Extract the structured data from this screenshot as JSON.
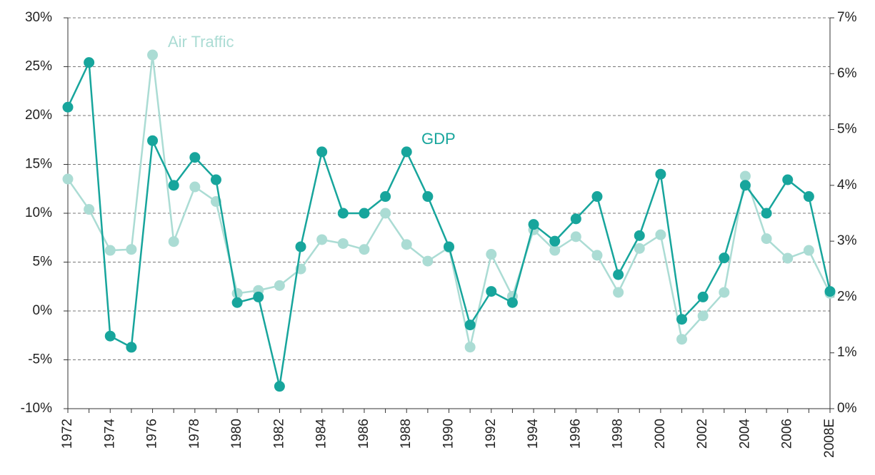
{
  "chart_data": {
    "type": "line",
    "annotations": [
      "Air Traffic",
      "GDP"
    ],
    "categories": [
      "1972",
      null,
      "1974",
      null,
      "1976",
      null,
      "1978",
      null,
      "1980",
      null,
      "1982",
      null,
      "1984",
      null,
      "1986",
      null,
      "1988",
      null,
      "1990",
      null,
      "1992",
      null,
      "1994",
      null,
      "1996",
      null,
      "1998",
      null,
      "2000",
      null,
      "2002",
      null,
      "2004",
      null,
      "2006",
      null,
      "2008E"
    ],
    "series": [
      {
        "name": "Air Traffic",
        "color": "#abdcd4",
        "axis": "y",
        "values": [
          13.5,
          10.4,
          6.2,
          6.3,
          26.2,
          7.1,
          12.7,
          11.2,
          1.8,
          2.1,
          2.6,
          4.3,
          7.3,
          6.9,
          6.3,
          10.0,
          6.8,
          5.1,
          6.5,
          -3.7,
          5.8,
          1.5,
          8.3,
          6.2,
          7.6,
          5.7,
          1.9,
          6.4,
          7.8,
          -2.9,
          -0.5,
          1.9,
          13.8,
          7.4,
          5.4,
          6.2,
          1.8
        ]
      },
      {
        "name": "GDP",
        "color": "#17a59c",
        "axis": "y2",
        "values": [
          5.4,
          6.2,
          1.3,
          1.1,
          4.8,
          4.0,
          4.5,
          4.1,
          1.9,
          2.0,
          0.4,
          2.9,
          4.6,
          3.5,
          3.5,
          3.8,
          4.6,
          3.8,
          2.9,
          1.5,
          2.1,
          1.9,
          3.3,
          3.0,
          3.4,
          3.8,
          2.4,
          3.1,
          4.2,
          1.6,
          2.0,
          2.7,
          4.0,
          3.5,
          4.1,
          3.8,
          2.1
        ]
      }
    ],
    "ylim": [
      -10,
      30
    ],
    "yticks": [
      {
        "value": -10,
        "label": "-10%"
      },
      {
        "value": -5,
        "label": "-5%"
      },
      {
        "value": 0,
        "label": "0%"
      },
      {
        "value": 5,
        "label": "5%"
      },
      {
        "value": 10,
        "label": "10%"
      },
      {
        "value": 15,
        "label": "15%"
      },
      {
        "value": 20,
        "label": "20%"
      },
      {
        "value": 25,
        "label": "25%"
      },
      {
        "value": 30,
        "label": "30%"
      }
    ],
    "y2lim": [
      0,
      7
    ],
    "y2ticks": [
      {
        "value": 0,
        "label": "0%"
      },
      {
        "value": 1,
        "label": "1%"
      },
      {
        "value": 2,
        "label": "2%"
      },
      {
        "value": 3,
        "label": "3%"
      },
      {
        "value": 4,
        "label": "4%"
      },
      {
        "value": 5,
        "label": "5%"
      },
      {
        "value": 6,
        "label": "6%"
      },
      {
        "value": 7,
        "label": "7%"
      }
    ],
    "grid": true
  }
}
